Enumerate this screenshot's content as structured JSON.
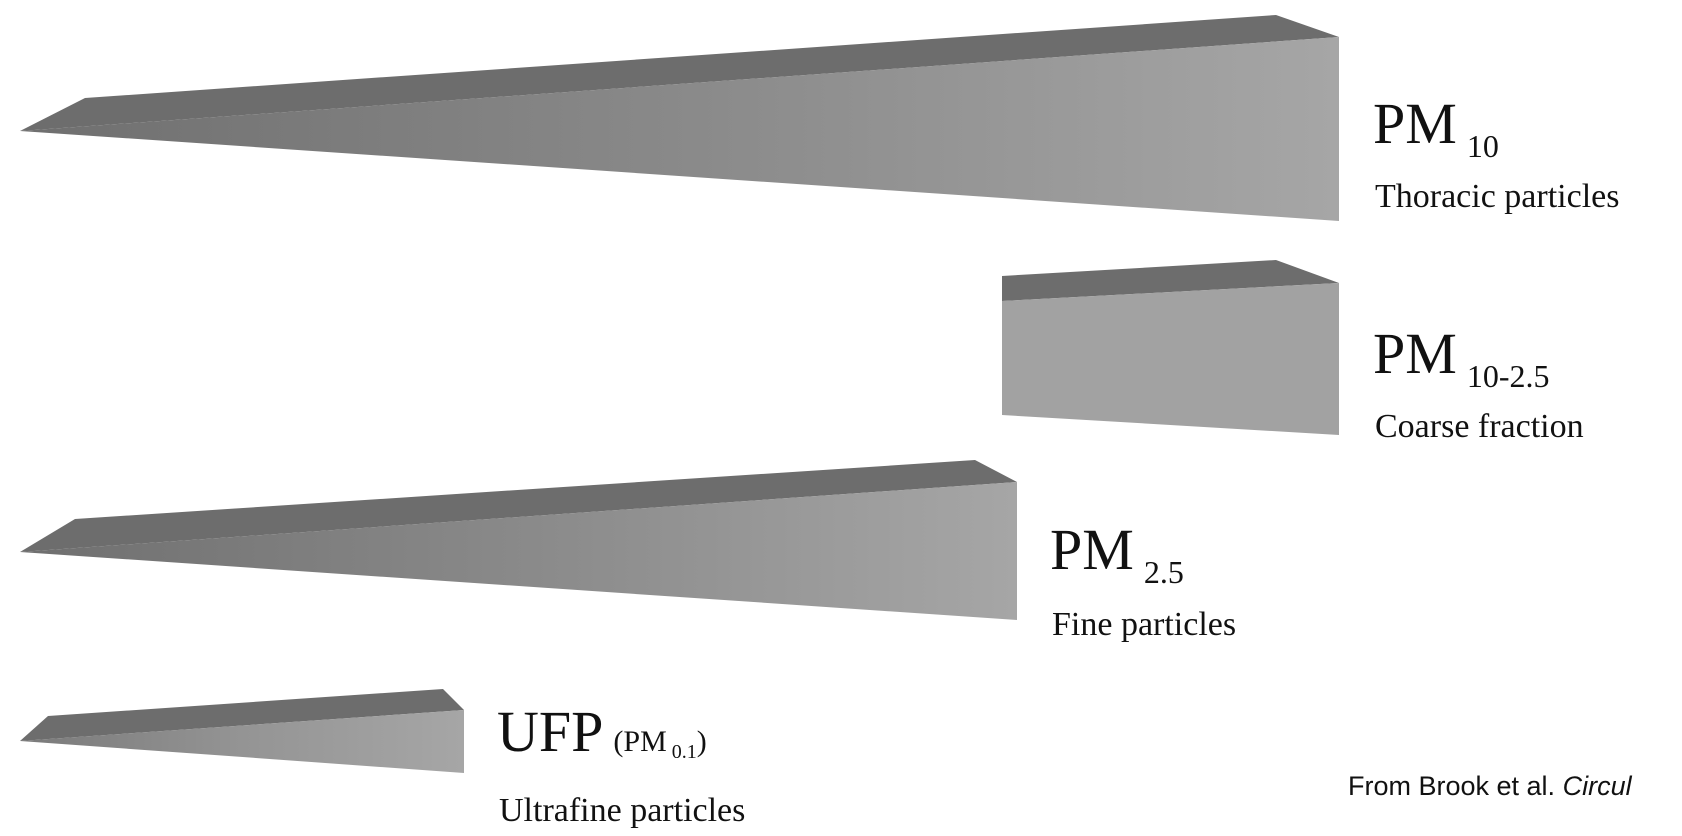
{
  "fractions": [
    {
      "id": "pm10",
      "label": "PM",
      "subscript": "10",
      "description": "Thoracic particles"
    },
    {
      "id": "pm10-2.5",
      "label": "PM",
      "subscript": "10-2.5",
      "description": "Coarse fraction"
    },
    {
      "id": "pm2.5",
      "label": "PM",
      "subscript": "2.5",
      "description": "Fine particles"
    },
    {
      "id": "ufp",
      "label": "UFP",
      "paren_open": "(PM",
      "subscript": "0.1",
      "paren_close": ")",
      "description": "Ultrafine particles"
    }
  ],
  "credit": {
    "prefix": "From Brook et al. ",
    "journal": "Circul"
  },
  "colors": {
    "wedge_top": "#6d6d6d",
    "wedge_side_dark": "#7d7d7d",
    "wedge_side_light": "#a3a3a3",
    "background": "#ffffff"
  }
}
